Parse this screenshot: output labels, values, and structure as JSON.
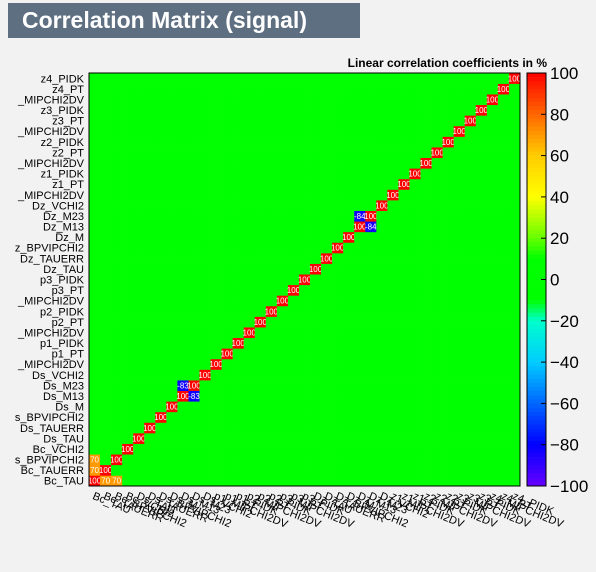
{
  "chart_data": {
    "type": "heatmap",
    "title": "Correlation Matrix (signal)",
    "subtitle": "Linear correlation coefficients in %",
    "xlabel": "",
    "ylabel": "",
    "variables": [
      "Bc_TAU",
      "Bc_TAUERR",
      "Bc_BPVIPCHI2",
      "Bc_VCHI2",
      "Ds_TAU",
      "Ds_TAUERR",
      "Ds_BPVIPCHI2",
      "Ds_M",
      "Ds_M13",
      "Ds_M23",
      "Ds_VCHI2",
      "p1_MIPCHI2DV",
      "p1_PT",
      "p1_PIDK",
      "p2_MIPCHI2DV",
      "p2_PT",
      "p2_PIDK",
      "p3_MIPCHI2DV",
      "p3_PT",
      "p3_PIDK",
      "Dz_TAU",
      "Dz_TAUERR",
      "Dz_BPVIPCHI2",
      "Dz_M",
      "Dz_M13",
      "Dz_M23",
      "Dz_VCHI2",
      "z1_MIPCHI2DV",
      "z1_PT",
      "z1_PIDK",
      "z2_MIPCHI2DV",
      "z2_PT",
      "z2_PIDK",
      "z3_MIPCHI2DV",
      "z3_PT",
      "z3_PIDK",
      "z4_MIPCHI2DV",
      "z4_PT",
      "z4_PIDK"
    ],
    "y_labels_visible": [
      "Bc_TAU",
      "Bc_TAUERR",
      "s_BPVIPCHI2",
      "Bc_VCHI2",
      "Ds_TAU",
      "Ds_TAUERR",
      "s_BPVIPCHI2",
      "Ds_M",
      "Ds_M13",
      "Ds_M23",
      "Ds_VCHI2",
      "_MIPCHI2DV",
      "p1_PT",
      "p1_PIDK",
      "_MIPCHI2DV",
      "p2_PT",
      "p2_PIDK",
      "_MIPCHI2DV",
      "p3_PT",
      "p3_PIDK",
      "Dz_TAU",
      "Dz_TAUERR",
      "z_BPVIPCHI2",
      "Dz_M",
      "Dz_M13",
      "Dz_M23",
      "Dz_VCHI2",
      "_MIPCHI2DV",
      "z1_PT",
      "z1_PIDK",
      "_MIPCHI2DV",
      "z2_PT",
      "z2_PIDK",
      "_MIPCHI2DV",
      "z3_PT",
      "z3_PIDK",
      "_MIPCHI2DV",
      "z4_PT",
      "z4_PIDK"
    ],
    "value_range": [
      -100,
      100
    ],
    "colorbar_ticks": [
      "100",
      "80",
      "60",
      "40",
      "20",
      "0",
      "−20",
      "−40",
      "−60",
      "−80",
      "−100"
    ],
    "diagonal_value": 100,
    "notable_values": [
      {
        "row": "Dz_M13",
        "col": "Dz_M23",
        "value": -84
      },
      {
        "row": "Ds_M13",
        "col": "Ds_M23",
        "value": -83
      },
      {
        "row": "Bc_TAU",
        "col": "Bc_BPVIPCHI2",
        "value": 70
      },
      {
        "row": "Bc_TAUERR",
        "col": "Bc_TAU",
        "value": 70
      }
    ],
    "background_correlation": "mostly near 0 (green)",
    "grid": false,
    "legend": "colorbar right"
  },
  "colors": {
    "background": "#f2f2f2",
    "title_box": "#5f6f82",
    "title_text": "#ffffff",
    "near_zero": "#00ff00",
    "positive_high": "#ff0000",
    "negative_high": "#6600ff"
  }
}
